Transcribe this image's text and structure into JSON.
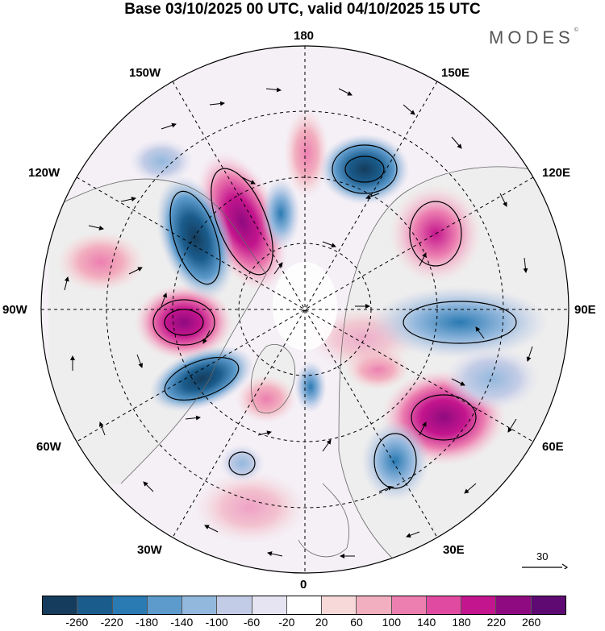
{
  "header": {
    "title": "Base 03/10/2025 00 UTC, valid 04/10/2025 15 UTC",
    "brand": "MODES",
    "brand_mark": "©"
  },
  "map": {
    "projection": "north-polar-stereographic",
    "longitude_labels": {
      "top": "180",
      "bottom": "0",
      "left": "90W",
      "right": "90E",
      "upper_left": "150W",
      "upper_right": "150E",
      "upper_mid_left": "120W",
      "upper_mid_right": "120E",
      "lower_mid_left": "60W",
      "lower_mid_right": "60E",
      "lower_left": "30W",
      "lower_right": "30E"
    },
    "reference_vector": {
      "value": "30"
    }
  },
  "colors": {
    "negative_strong": "#0f4566",
    "negative_weak": "#e6e4f2",
    "positive_weak": "#f8d9da",
    "positive_strong": "#7a0a73",
    "land": "#eeeeee"
  },
  "colorbar": {
    "colors": [
      "#153c5c",
      "#1a5c8c",
      "#2a7ab3",
      "#5d9bcc",
      "#93b8dd",
      "#c3cce6",
      "#e6e4f2",
      "#ffffff",
      "#f8d9da",
      "#f2afbf",
      "#ec7fb0",
      "#e14aa1",
      "#c3158d",
      "#8f0a80",
      "#5e0a72"
    ],
    "ticks": [
      "-260",
      "-220",
      "-180",
      "-140",
      "-100",
      "-60",
      "-20",
      "20",
      "60",
      "100",
      "140",
      "180",
      "220",
      "260"
    ]
  }
}
